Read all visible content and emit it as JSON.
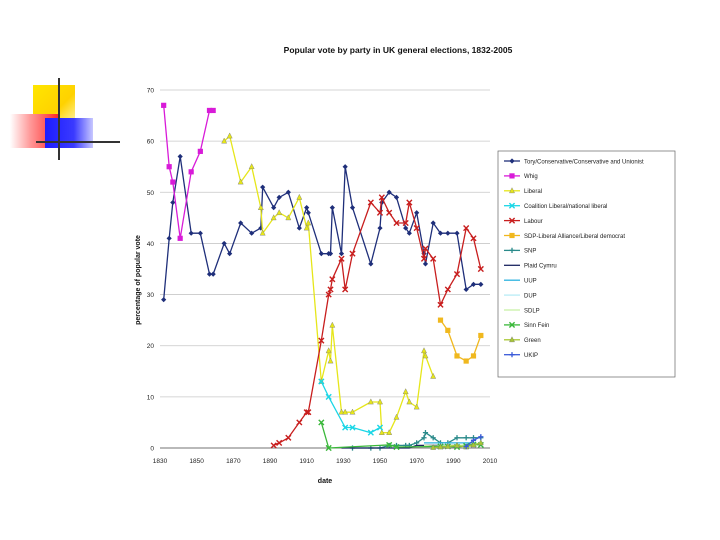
{
  "chart_data": {
    "type": "line",
    "title": "Popular vote by party in UK general elections, 1832-2005",
    "xlabel": "date",
    "ylabel": "percentage of popular vote",
    "xlim": [
      1830,
      2010
    ],
    "ylim": [
      0,
      70
    ],
    "xticks": [
      "1830",
      "1850",
      "1870",
      "1890",
      "1910",
      "1930",
      "1950",
      "1970",
      "1990",
      "2010"
    ],
    "yticks": [
      "0",
      "10",
      "20",
      "30",
      "40",
      "50",
      "60",
      "70"
    ],
    "grid": true,
    "legend_position": "right",
    "series": [
      {
        "name": "Tory/Conservative/Conservative and Unionist",
        "color": "#1f2f7a",
        "marker": "diamond",
        "x": [
          1832,
          1835,
          1837,
          1841,
          1847,
          1852,
          1857,
          1859,
          1865,
          1868,
          1874,
          1880,
          1885,
          1886,
          1892,
          1895,
          1900,
          1906,
          1910,
          1910.9,
          1918,
          1922,
          1923,
          1924,
          1929,
          1931,
          1935,
          1945,
          1950,
          1951,
          1955,
          1959,
          1964,
          1966,
          1970,
          1974,
          1974.8,
          1979,
          1983,
          1987,
          1992,
          1997,
          2001,
          2005
        ],
        "y": [
          29,
          41,
          48,
          57,
          42,
          42,
          34,
          34,
          40,
          38,
          44,
          42,
          43,
          51,
          47,
          49,
          50,
          43,
          47,
          46,
          38,
          38,
          38,
          47,
          38,
          55,
          47,
          36,
          43,
          48,
          50,
          49,
          43,
          42,
          46,
          38,
          36,
          44,
          42,
          42,
          42,
          31,
          32,
          32
        ]
      },
      {
        "name": "Whig",
        "color": "#d81bd8",
        "marker": "square",
        "x": [
          1832,
          1835,
          1837,
          1841,
          1847,
          1852,
          1857,
          1859
        ],
        "y": [
          67,
          55,
          52,
          41,
          54,
          58,
          66,
          66
        ]
      },
      {
        "name": "Liberal",
        "color": "#e6e61a",
        "marker": "triangle",
        "x": [
          1865,
          1868,
          1874,
          1880,
          1885,
          1886,
          1892,
          1895,
          1900,
          1906,
          1910,
          1910.9,
          1918,
          1922,
          1923,
          1924,
          1929,
          1931,
          1935,
          1945,
          1950,
          1951,
          1955,
          1959,
          1964,
          1966,
          1970,
          1974,
          1974.8,
          1979
        ],
        "y": [
          60,
          61,
          52,
          55,
          47,
          42,
          45,
          46,
          45,
          49,
          43,
          44,
          13,
          19,
          17,
          24,
          7,
          7,
          7,
          9,
          9,
          3,
          3,
          6,
          11,
          9,
          8,
          19,
          18,
          14
        ]
      },
      {
        "name": "Coalition Liberal/national liberal",
        "color": "#1ad6e6",
        "marker": "x",
        "x": [
          1918,
          1922,
          1931,
          1935,
          1945,
          1950
        ],
        "y": [
          13,
          10,
          4,
          4,
          3,
          4
        ]
      },
      {
        "name": "Labour",
        "color": "#c81e1e",
        "marker": "x",
        "x": [
          1892,
          1895,
          1900,
          1906,
          1910,
          1910.9,
          1918,
          1922,
          1923,
          1924,
          1929,
          1931,
          1935,
          1945,
          1950,
          1951,
          1955,
          1959,
          1964,
          1966,
          1970,
          1974,
          1974.8,
          1979,
          1983,
          1987,
          1992,
          1997,
          2001,
          2005
        ],
        "y": [
          0.5,
          1,
          2,
          5,
          7,
          7,
          21,
          30,
          31,
          33,
          37,
          31,
          38,
          48,
          46,
          49,
          46,
          44,
          44,
          48,
          43,
          37,
          39,
          37,
          28,
          31,
          34,
          43,
          41,
          35
        ]
      },
      {
        "name": "SDP-Liberal Alliance/Liberal democrat",
        "color": "#f0b81e",
        "marker": "square",
        "x": [
          1983,
          1987,
          1992,
          1997,
          2001,
          2005
        ],
        "y": [
          25,
          23,
          18,
          17,
          18,
          22
        ]
      },
      {
        "name": "SNP",
        "color": "#2a8a8a",
        "marker": "plus",
        "x": [
          1935,
          1945,
          1950,
          1955,
          1959,
          1964,
          1966,
          1970,
          1974,
          1974.8,
          1979,
          1983,
          1987,
          1992,
          1997,
          2001,
          2005
        ],
        "y": [
          0,
          0,
          0,
          0.5,
          0.5,
          0.5,
          0.5,
          1,
          2,
          3,
          2,
          1,
          1,
          2,
          2,
          2,
          2
        ]
      },
      {
        "name": "Plaid Cymru",
        "color": "#1a2560",
        "marker": "none",
        "x": [
          1929,
          1935,
          1945,
          1950,
          1955,
          1959,
          1964,
          1966,
          1970,
          1974,
          1974.8,
          1979,
          1983,
          1987,
          1992,
          1997,
          2001,
          2005
        ],
        "y": [
          0,
          0,
          0,
          0,
          0,
          0,
          0,
          0,
          0.5,
          0.5,
          0.5,
          0.5,
          0.5,
          0.5,
          0.5,
          0.5,
          0.7,
          0.6
        ]
      },
      {
        "name": "UUP",
        "color": "#2bb3e0",
        "marker": "none",
        "x": [
          1974,
          1974.8,
          1979,
          1983,
          1987,
          1992,
          1997,
          2001,
          2005
        ],
        "y": [
          1,
          1,
          1,
          1,
          1,
          1,
          1,
          1,
          0.5
        ]
      },
      {
        "name": "DUP",
        "color": "#b8ecf5",
        "marker": "none",
        "x": [
          1979,
          1983,
          1987,
          1992,
          1997,
          2001,
          2005
        ],
        "y": [
          0.2,
          0.5,
          0.3,
          0.3,
          0.3,
          0.7,
          0.9
        ]
      },
      {
        "name": "SDLP",
        "color": "#c8f0a8",
        "marker": "none",
        "x": [
          1974,
          1979,
          1983,
          1987,
          1992,
          1997,
          2001,
          2005
        ],
        "y": [
          0.5,
          0.4,
          0.4,
          0.5,
          0.5,
          0.6,
          0.6,
          0.5
        ]
      },
      {
        "name": "Sinn Fein",
        "color": "#3ab83a",
        "marker": "x",
        "x": [
          1918,
          1922,
          1955,
          1959,
          1983,
          1987,
          1992,
          1997,
          2001,
          2005
        ],
        "y": [
          5,
          0,
          0.6,
          0.2,
          0.3,
          0.3,
          0.2,
          0.4,
          0.7,
          0.6
        ]
      },
      {
        "name": "Green",
        "color": "#a8c832",
        "marker": "triangle",
        "x": [
          1979,
          1983,
          1987,
          1992,
          1997,
          2001,
          2005
        ],
        "y": [
          0.1,
          0.2,
          0.3,
          0.5,
          0.2,
          0.6,
          1
        ]
      },
      {
        "name": "UKIP",
        "color": "#3a5ad8",
        "marker": "plus",
        "x": [
          1997,
          2001,
          2005
        ],
        "y": [
          0.3,
          1.5,
          2.2
        ]
      }
    ]
  }
}
